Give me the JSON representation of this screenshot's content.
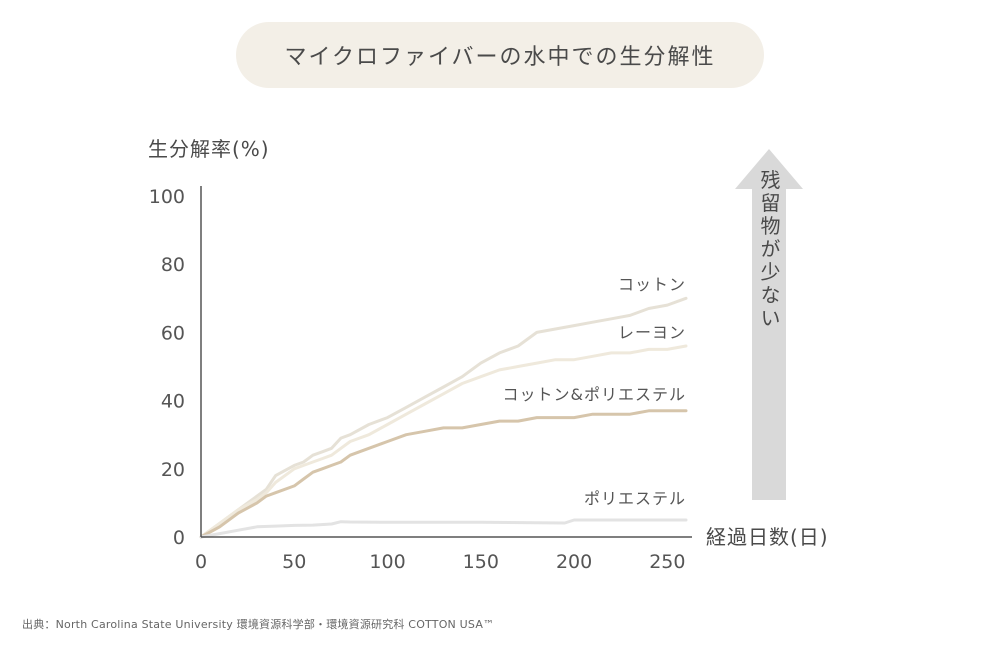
{
  "title": "マイクロファイバーの水中での生分解性",
  "source": "出典：North Carolina State University 環境資源科学部・環境資源研究科 COTTON USA™",
  "chart_data": {
    "type": "line",
    "title": "マイクロファイバーの水中での生分解性",
    "xlabel": "経過日数(日)",
    "ylabel": "生分解率(%)",
    "xlim": [
      0,
      260
    ],
    "ylim": [
      0,
      100
    ],
    "xticks": [
      0,
      50,
      100,
      150,
      200,
      250
    ],
    "yticks": [
      0,
      20,
      40,
      60,
      80,
      100
    ],
    "grid": false,
    "annotation": "残留物が少ない",
    "annotation_color": "#d9d9d9",
    "series": [
      {
        "name": "コットン",
        "color": "#e6e1d6",
        "x": [
          0,
          10,
          20,
          30,
          35,
          40,
          50,
          55,
          60,
          65,
          70,
          75,
          80,
          90,
          100,
          110,
          120,
          130,
          140,
          150,
          160,
          170,
          180,
          190,
          200,
          210,
          220,
          230,
          240,
          250,
          260
        ],
        "y": [
          0,
          4,
          8,
          12,
          14,
          18,
          21,
          22,
          24,
          25,
          26,
          29,
          30,
          33,
          35,
          38,
          41,
          44,
          47,
          51,
          54,
          56,
          60,
          61,
          62,
          63,
          64,
          65,
          67,
          68,
          70
        ]
      },
      {
        "name": "レーヨン",
        "color": "#efe9dc",
        "x": [
          0,
          10,
          20,
          30,
          35,
          40,
          50,
          55,
          60,
          65,
          70,
          75,
          80,
          90,
          100,
          110,
          120,
          130,
          140,
          150,
          160,
          170,
          180,
          190,
          200,
          210,
          220,
          230,
          240,
          250,
          260
        ],
        "y": [
          0,
          4,
          8,
          11,
          13,
          16,
          20,
          21,
          22,
          23,
          24,
          26,
          28,
          30,
          33,
          36,
          39,
          42,
          45,
          47,
          49,
          50,
          51,
          52,
          52,
          53,
          54,
          54,
          55,
          55,
          56
        ]
      },
      {
        "name": "コットン&ポリエステル",
        "color": "#d6c5ab",
        "x": [
          0,
          10,
          20,
          30,
          35,
          40,
          50,
          55,
          60,
          65,
          70,
          75,
          80,
          90,
          100,
          110,
          120,
          130,
          140,
          150,
          160,
          170,
          180,
          190,
          200,
          210,
          220,
          230,
          240,
          250,
          260
        ],
        "y": [
          0,
          3,
          7,
          10,
          12,
          13,
          15,
          17,
          19,
          20,
          21,
          22,
          24,
          26,
          28,
          30,
          31,
          32,
          32,
          33,
          34,
          34,
          35,
          35,
          35,
          36,
          36,
          36,
          37,
          37,
          37
        ]
      },
      {
        "name": "ポリエステル",
        "color": "#e3e3e3",
        "x": [
          0,
          10,
          20,
          30,
          40,
          50,
          60,
          70,
          75,
          80,
          100,
          150,
          180,
          195,
          200,
          230,
          260
        ],
        "y": [
          0,
          1,
          2,
          3,
          3.2,
          3.4,
          3.5,
          3.8,
          4.5,
          4.4,
          4.3,
          4.3,
          4.2,
          4.1,
          5,
          5,
          5
        ]
      }
    ]
  }
}
